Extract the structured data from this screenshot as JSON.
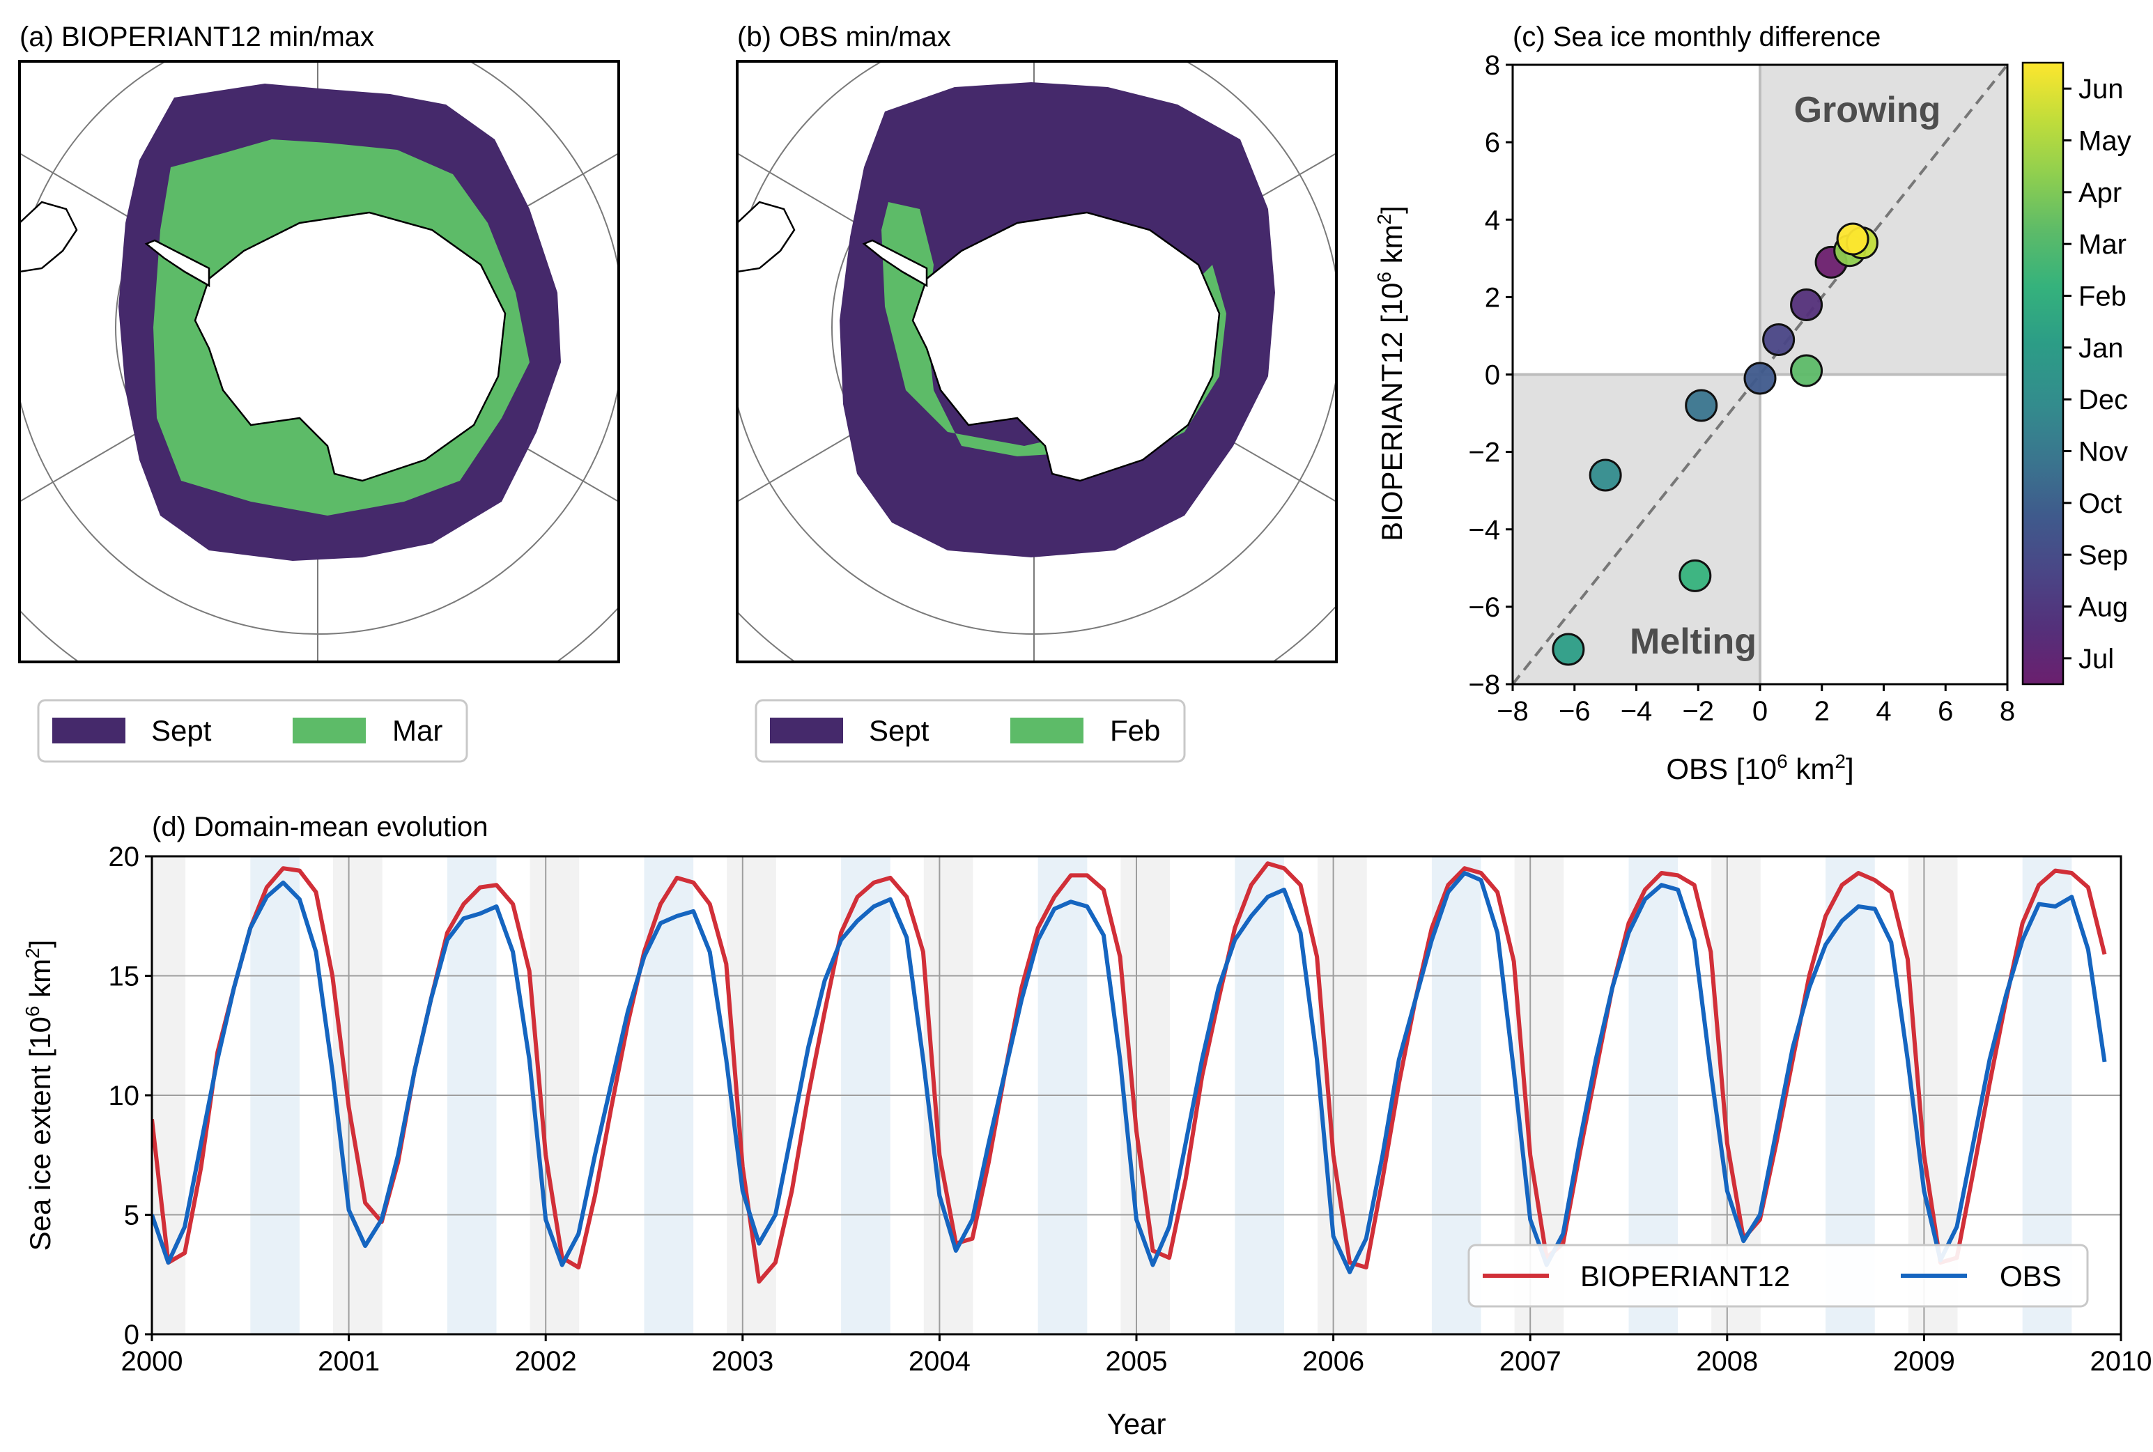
{
  "colors": {
    "sept": "#45296b",
    "summer": "#5dbb68",
    "red": "#d12f38",
    "blue": "#1565c0",
    "shade_grey": "#e0e0e0",
    "season_grey": "#f2f2f2",
    "season_blue": "#e8f1f8",
    "land": "#ffffff",
    "grid": "#9e9e9e"
  },
  "panel_a": {
    "title": "(a) BIOPERIANT12 min/max",
    "legend": [
      "Sept",
      "Mar"
    ]
  },
  "panel_b": {
    "title": "(b) OBS min/max",
    "legend": [
      "Sept",
      "Feb"
    ]
  },
  "panel_c": {
    "title": "(c) Sea ice monthly difference",
    "annotations": {
      "growing": "Growing",
      "melting": "Melting"
    }
  },
  "panel_d": {
    "title": "(d) Domain-mean evolution"
  },
  "chart_data": [
    {
      "type": "scatter",
      "title": "(c) Sea ice monthly difference",
      "xlabel": "OBS [10^6 km^2]",
      "ylabel": "BIOPERIANT12 [10^6 km^2]",
      "xlim": [
        -8,
        8
      ],
      "ylim": [
        -8,
        8
      ],
      "xticks": [
        "−8",
        "−6",
        "−4",
        "−2",
        "0",
        "2",
        "4",
        "6",
        "8"
      ],
      "yticks": [
        "−8",
        "−6",
        "−4",
        "−2",
        "0",
        "2",
        "4",
        "6",
        "8"
      ],
      "diagonal": true,
      "colorbar": {
        "labels": [
          "Jul",
          "Aug",
          "Sep",
          "Oct",
          "Nov",
          "Dec",
          "Jan",
          "Feb",
          "Mar",
          "Apr",
          "May",
          "Jun"
        ],
        "colors": [
          "#6b1f6e",
          "#54307a",
          "#4a4686",
          "#3f5a8c",
          "#3a758e",
          "#338c8d",
          "#2c9d86",
          "#35b27c",
          "#5dbb68",
          "#8fcf4f",
          "#c2dd3a",
          "#fde62e"
        ]
      },
      "points": [
        {
          "month": "Jul",
          "x": 2.3,
          "y": 2.9
        },
        {
          "month": "Aug",
          "x": 1.5,
          "y": 1.8
        },
        {
          "month": "Sep",
          "x": 0.6,
          "y": 0.9
        },
        {
          "month": "Oct",
          "x": 0.0,
          "y": -0.1
        },
        {
          "month": "Nov",
          "x": -1.9,
          "y": -0.8
        },
        {
          "month": "Dec",
          "x": -5.0,
          "y": -2.6
        },
        {
          "month": "Jan",
          "x": -6.2,
          "y": -7.1
        },
        {
          "month": "Feb",
          "x": -2.1,
          "y": -5.2
        },
        {
          "month": "Mar",
          "x": 1.5,
          "y": 0.1
        },
        {
          "month": "Apr",
          "x": 2.9,
          "y": 3.2
        },
        {
          "month": "May",
          "x": 3.3,
          "y": 3.4
        },
        {
          "month": "Jun",
          "x": 3.0,
          "y": 3.5
        }
      ]
    },
    {
      "type": "line",
      "title": "(d) Domain-mean evolution",
      "xlabel": "Year",
      "ylabel": "Sea ice extent [10^6 km^2]",
      "xlim": [
        2000,
        2010
      ],
      "ylim": [
        0,
        20
      ],
      "xticks": [
        "2000",
        "2001",
        "2002",
        "2003",
        "2004",
        "2005",
        "2006",
        "2007",
        "2008",
        "2009",
        "2010"
      ],
      "yticks": [
        "0",
        "5",
        "10",
        "15",
        "20"
      ],
      "legend": [
        "BIOPERIANT12",
        "OBS"
      ],
      "legend_position": "lower-right",
      "series": [
        {
          "name": "BIOPERIANT12",
          "color": "#d12f38",
          "years": [
            [
              9.0,
              3.0,
              3.4,
              7.0,
              11.8,
              14.5,
              17.0,
              18.7,
              19.5,
              19.4,
              18.5,
              15.0
            ],
            [
              9.5,
              5.5,
              4.7,
              7.2,
              11.0,
              14.0,
              16.8,
              18.0,
              18.7,
              18.8,
              18.0,
              15.2
            ],
            [
              7.5,
              3.2,
              2.8,
              5.8,
              9.5,
              13.0,
              16.0,
              18.0,
              19.1,
              18.9,
              18.0,
              15.5
            ],
            [
              7.0,
              2.2,
              3.0,
              6.0,
              10.0,
              13.5,
              16.8,
              18.3,
              18.9,
              19.1,
              18.3,
              16.0
            ],
            [
              7.5,
              3.8,
              4.0,
              7.2,
              11.0,
              14.5,
              17.0,
              18.3,
              19.2,
              19.2,
              18.6,
              15.8
            ],
            [
              8.5,
              3.5,
              3.2,
              6.5,
              10.8,
              14.0,
              17.0,
              18.8,
              19.7,
              19.5,
              18.8,
              15.8
            ],
            [
              7.5,
              3.0,
              2.8,
              6.5,
              10.5,
              14.0,
              17.0,
              18.8,
              19.5,
              19.3,
              18.5,
              15.6
            ],
            [
              7.5,
              3.2,
              3.8,
              7.5,
              11.0,
              14.5,
              17.2,
              18.6,
              19.3,
              19.2,
              18.8,
              16.0
            ],
            [
              8.0,
              4.0,
              4.8,
              8.0,
              11.5,
              15.0,
              17.5,
              18.8,
              19.3,
              19.0,
              18.5,
              15.7
            ],
            [
              7.5,
              3.0,
              3.2,
              6.8,
              10.5,
              14.0,
              17.2,
              18.8,
              19.4,
              19.3,
              18.7,
              15.9
            ]
          ]
        },
        {
          "name": "OBS",
          "color": "#1565c0",
          "years": [
            [
              5.0,
              3.0,
              4.5,
              8.0,
              11.5,
              14.5,
              17.0,
              18.3,
              18.9,
              18.2,
              16.0,
              11.0
            ],
            [
              5.2,
              3.7,
              4.8,
              7.5,
              11.0,
              14.0,
              16.5,
              17.4,
              17.6,
              17.9,
              16.0,
              11.5
            ],
            [
              4.8,
              2.9,
              4.2,
              7.5,
              10.5,
              13.5,
              15.8,
              17.2,
              17.5,
              17.7,
              16.0,
              11.5
            ],
            [
              6.0,
              3.8,
              5.0,
              8.5,
              12.0,
              14.8,
              16.5,
              17.3,
              17.9,
              18.2,
              16.6,
              11.5
            ],
            [
              5.8,
              3.5,
              4.8,
              8.0,
              11.0,
              14.0,
              16.5,
              17.8,
              18.1,
              17.9,
              16.7,
              11.5
            ],
            [
              4.8,
              2.9,
              4.5,
              8.0,
              11.5,
              14.5,
              16.5,
              17.5,
              18.3,
              18.6,
              16.8,
              11.5
            ],
            [
              4.1,
              2.6,
              4.0,
              7.5,
              11.5,
              14.0,
              16.5,
              18.5,
              19.3,
              19.0,
              16.8,
              11.0
            ],
            [
              4.8,
              2.9,
              4.2,
              8.0,
              11.5,
              14.5,
              16.8,
              18.2,
              18.8,
              18.6,
              16.5,
              11.0
            ],
            [
              6.0,
              3.9,
              5.0,
              8.5,
              12.0,
              14.5,
              16.3,
              17.3,
              17.9,
              17.8,
              16.4,
              11.5
            ],
            [
              6.0,
              3.1,
              4.5,
              8.0,
              11.5,
              14.2,
              16.5,
              18.0,
              17.9,
              18.3,
              16.1,
              11.4
            ]
          ]
        }
      ]
    }
  ]
}
